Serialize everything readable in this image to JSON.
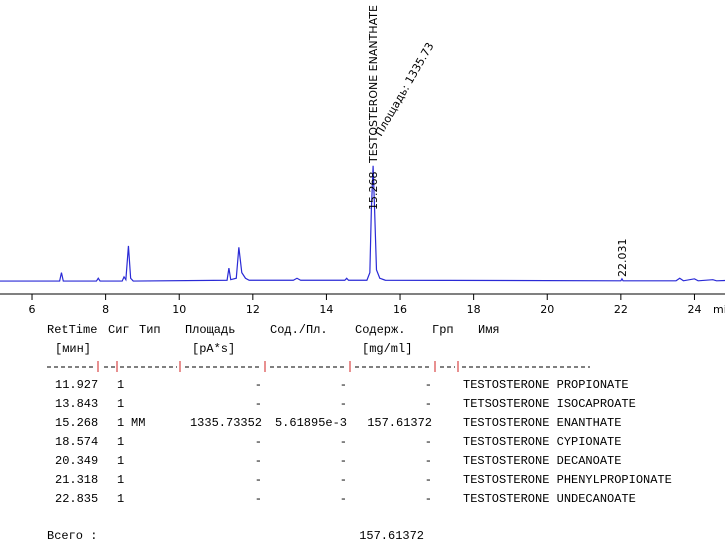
{
  "chart_data": {
    "type": "line",
    "x_label": "min",
    "xlim": [
      5.13,
      24.83
    ],
    "xticks": [
      6,
      8,
      10,
      12,
      14,
      16,
      18,
      20,
      22,
      24
    ],
    "ylim": [
      -4.6,
      100
    ],
    "color": "#2a2ad6",
    "x": [
      5.13,
      6.75,
      6.8,
      6.85,
      7.75,
      7.8,
      7.85,
      8.45,
      8.5,
      8.55,
      8.62,
      8.68,
      8.75,
      11.3,
      11.35,
      11.4,
      11.55,
      11.62,
      11.7,
      11.8,
      11.9,
      13.1,
      13.2,
      13.3,
      14.5,
      14.55,
      14.6,
      15.1,
      15.18,
      15.22,
      15.268,
      15.31,
      15.36,
      15.45,
      15.6,
      22.0,
      22.03,
      22.06,
      23.5,
      23.6,
      23.7,
      24.0,
      24.1,
      24.5,
      24.6,
      24.83
    ],
    "values": [
      0,
      0,
      3,
      0,
      0,
      1,
      0,
      0,
      1.5,
      0.5,
      12.5,
      1,
      0,
      0.3,
      4.6,
      0.5,
      1,
      12,
      3,
      1,
      0.3,
      0.3,
      1,
      0.3,
      0.3,
      1,
      0.3,
      0.3,
      3,
      25,
      41,
      25,
      4,
      1,
      0.3,
      0.1,
      0.8,
      0.1,
      0.1,
      1,
      0.1,
      0.8,
      0.1,
      0.5,
      0.1,
      0.2
    ],
    "peaks": [
      {
        "rt": 15.268,
        "name": "TESTOSTERONE ENANTHATE",
        "area_label": "Площадь: 1335.73"
      },
      {
        "rt": 22.031
      }
    ]
  },
  "table": {
    "header": [
      "RetTime",
      "Сиг",
      "Тип",
      "Площадь",
      "Сод./Пл.",
      "Содерж.",
      "Грп",
      "Имя"
    ],
    "units": [
      "[мин]",
      "[pA*s]",
      "[mg/ml]"
    ],
    "rows": [
      [
        "11.927",
        "1",
        "",
        "-",
        "-",
        "-",
        "TESTOSTERONE PROPIONATE"
      ],
      [
        "13.843",
        "1",
        "",
        "-",
        "-",
        "-",
        "TETSOSTERONE ISOCAPROATE"
      ],
      [
        "15.268",
        "1",
        "MM",
        "1335.73352",
        "5.61895e-3",
        "157.61372",
        "TESTOSTERONE ENANTHATE"
      ],
      [
        "18.574",
        "1",
        "",
        "-",
        "-",
        "-",
        "TESTOSTERONE CYPIONATE"
      ],
      [
        "20.349",
        "1",
        "",
        "-",
        "-",
        "-",
        "TESTOSTERONE DECANOATE"
      ],
      [
        "21.318",
        "1",
        "",
        "-",
        "-",
        "-",
        "TESTOSTERONE PHENYLPROPIONATE"
      ],
      [
        "22.835",
        "1",
        "",
        "-",
        "-",
        "-",
        "TESTOSTERONE UNDECANOATE"
      ]
    ],
    "total_label": "Всего :",
    "total": "157.61372"
  }
}
